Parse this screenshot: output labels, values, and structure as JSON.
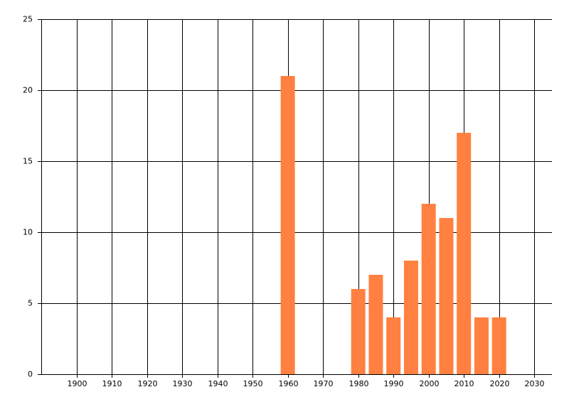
{
  "chart_data": {
    "type": "bar",
    "x": [
      1960,
      1980,
      1985,
      1990,
      1995,
      2000,
      2005,
      2010,
      2015,
      2020
    ],
    "values": [
      21,
      6,
      7,
      4,
      8,
      12,
      11,
      17,
      4,
      4
    ],
    "color": "#ff8040",
    "xlim": [
      1890,
      2035
    ],
    "xticks": [
      1900,
      1910,
      1920,
      1930,
      1940,
      1950,
      1960,
      1970,
      1980,
      1990,
      2000,
      2010,
      2020,
      2030
    ],
    "ylim": [
      0,
      25
    ],
    "yticks": [
      0,
      5,
      10,
      15,
      20,
      25
    ],
    "grid": true
  }
}
